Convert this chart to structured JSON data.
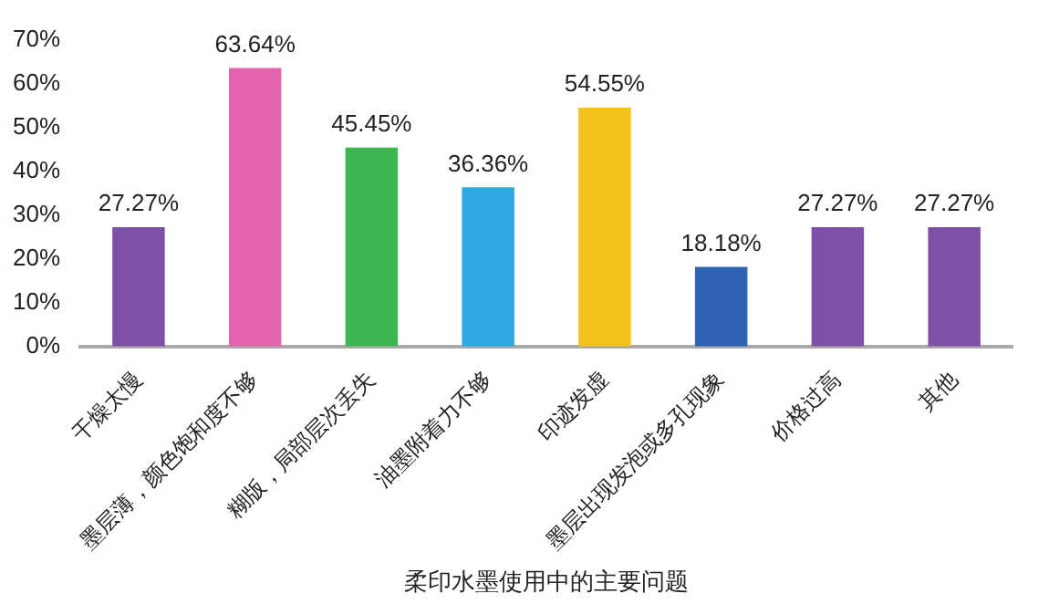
{
  "chart_data": {
    "type": "bar",
    "xlabel": "柔印水墨使用中的主要问题",
    "categories": [
      "干燥太慢",
      "墨层薄，颜色饱和度不够",
      "糊版，局部层次丢失",
      "油墨附着力不够",
      "印迹发虚",
      "墨层出现发泡或多孔现象",
      "价格过高",
      "其他"
    ],
    "values": [
      27.27,
      63.64,
      45.45,
      36.36,
      54.55,
      18.18,
      27.27,
      27.27
    ],
    "value_labels": [
      "27.27%",
      "63.64%",
      "45.45%",
      "36.36%",
      "54.55%",
      "18.18%",
      "27.27%",
      "27.27%"
    ],
    "colors": [
      "#7e4fa6",
      "#e463ad",
      "#3db551",
      "#2ea9e1",
      "#f3c31c",
      "#2f62b3",
      "#7e4fa6",
      "#7e4fa6"
    ],
    "ylim": [
      0,
      70
    ],
    "yticks": [
      {
        "value": 0,
        "label": "0%"
      },
      {
        "value": 10,
        "label": "10%"
      },
      {
        "value": 20,
        "label": "20%"
      },
      {
        "value": 30,
        "label": "30%"
      },
      {
        "value": 40,
        "label": "40%"
      },
      {
        "value": 50,
        "label": "50%"
      },
      {
        "value": 60,
        "label": "60%"
      },
      {
        "value": 70,
        "label": "70%"
      }
    ],
    "grid": false,
    "legend": false
  }
}
